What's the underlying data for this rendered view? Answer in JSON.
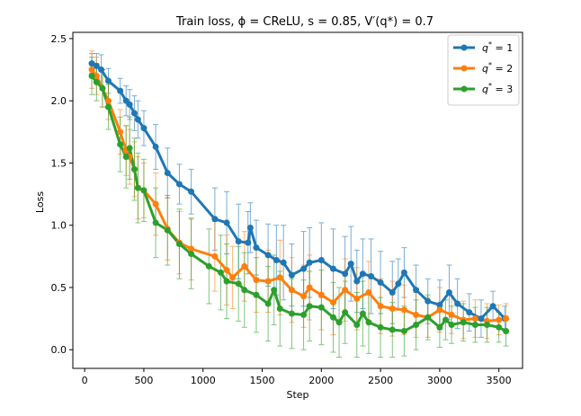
{
  "chart_data": {
    "type": "line",
    "title": "Train loss, ϕ = CReLU, s = 0.85, V′(q*) = 0.7",
    "xlabel": "Step",
    "ylabel": "Loss",
    "xlim": [
      -100,
      3700
    ],
    "ylim": [
      -0.15,
      2.55
    ],
    "xticks": [
      0,
      500,
      1000,
      1500,
      2000,
      2500,
      3000,
      3500
    ],
    "yticks": [
      0.0,
      0.5,
      1.0,
      1.5,
      2.0,
      2.5
    ],
    "xtick_labels": [
      "0",
      "500",
      "1000",
      "1500",
      "2000",
      "2500",
      "3000",
      "3500"
    ],
    "ytick_labels": [
      "0.0",
      "0.5",
      "1.0",
      "1.5",
      "2.0",
      "2.5"
    ],
    "grid": false,
    "legend_position": "top-right",
    "series": [
      {
        "name": "q* = 1",
        "label_main": "q",
        "label_sup": "*",
        "label_rest": " = 1",
        "color": "#1f77b4",
        "points": [
          [
            60,
            2.3,
            0.08
          ],
          [
            100,
            2.28,
            0.1
          ],
          [
            140,
            2.25,
            0.12
          ],
          [
            200,
            2.16,
            0.1
          ],
          [
            300,
            2.08,
            0.1
          ],
          [
            350,
            2.0,
            0.12
          ],
          [
            380,
            1.97,
            0.12
          ],
          [
            420,
            1.9,
            0.14
          ],
          [
            450,
            1.85,
            0.15
          ],
          [
            500,
            1.78,
            0.14
          ],
          [
            600,
            1.63,
            0.18
          ],
          [
            700,
            1.42,
            0.2
          ],
          [
            800,
            1.33,
            0.16
          ],
          [
            900,
            1.27,
            0.18
          ],
          [
            1100,
            1.05,
            0.25
          ],
          [
            1200,
            1.02,
            0.25
          ],
          [
            1300,
            0.87,
            0.3
          ],
          [
            1380,
            0.86,
            0.25
          ],
          [
            1400,
            0.98,
            0.2
          ],
          [
            1450,
            0.82,
            0.22
          ],
          [
            1550,
            0.76,
            0.25
          ],
          [
            1620,
            0.72,
            0.28
          ],
          [
            1680,
            0.7,
            0.3
          ],
          [
            1750,
            0.6,
            0.25
          ],
          [
            1850,
            0.65,
            0.3
          ],
          [
            1900,
            0.7,
            0.28
          ],
          [
            2000,
            0.72,
            0.3
          ],
          [
            2100,
            0.65,
            0.32
          ],
          [
            2200,
            0.61,
            0.3
          ],
          [
            2250,
            0.69,
            0.3
          ],
          [
            2300,
            0.55,
            0.25
          ],
          [
            2350,
            0.61,
            0.28
          ],
          [
            2420,
            0.59,
            0.3
          ],
          [
            2500,
            0.54,
            0.25
          ],
          [
            2600,
            0.46,
            0.25
          ],
          [
            2650,
            0.53,
            0.2
          ],
          [
            2700,
            0.62,
            0.2
          ],
          [
            2800,
            0.48,
            0.2
          ],
          [
            2900,
            0.39,
            0.18
          ],
          [
            3000,
            0.36,
            0.2
          ],
          [
            3080,
            0.46,
            0.22
          ],
          [
            3150,
            0.37,
            0.2
          ],
          [
            3250,
            0.3,
            0.15
          ],
          [
            3350,
            0.25,
            0.15
          ],
          [
            3450,
            0.35,
            0.12
          ],
          [
            3550,
            0.25,
            0.1
          ]
        ]
      },
      {
        "name": "q* = 2",
        "label_main": "q",
        "label_sup": "*",
        "label_rest": " = 2",
        "color": "#ff7f0e",
        "points": [
          [
            60,
            2.25,
            0.15
          ],
          [
            100,
            2.2,
            0.15
          ],
          [
            150,
            2.1,
            0.15
          ],
          [
            200,
            2.0,
            0.15
          ],
          [
            300,
            1.75,
            0.18
          ],
          [
            350,
            1.6,
            0.2
          ],
          [
            380,
            1.55,
            0.22
          ],
          [
            420,
            1.45,
            0.22
          ],
          [
            450,
            1.3,
            0.25
          ],
          [
            500,
            1.28,
            0.22
          ],
          [
            600,
            1.17,
            0.25
          ],
          [
            700,
            0.97,
            0.25
          ],
          [
            800,
            0.86,
            0.25
          ],
          [
            900,
            0.81,
            0.25
          ],
          [
            1100,
            0.75,
            0.28
          ],
          [
            1200,
            0.64,
            0.28
          ],
          [
            1250,
            0.58,
            0.25
          ],
          [
            1350,
            0.67,
            0.28
          ],
          [
            1450,
            0.56,
            0.26
          ],
          [
            1550,
            0.55,
            0.25
          ],
          [
            1650,
            0.58,
            0.3
          ],
          [
            1750,
            0.48,
            0.26
          ],
          [
            1850,
            0.43,
            0.25
          ],
          [
            1900,
            0.5,
            0.26
          ],
          [
            2000,
            0.44,
            0.28
          ],
          [
            2100,
            0.38,
            0.26
          ],
          [
            2200,
            0.48,
            0.25
          ],
          [
            2300,
            0.41,
            0.25
          ],
          [
            2400,
            0.46,
            0.25
          ],
          [
            2500,
            0.35,
            0.22
          ],
          [
            2600,
            0.33,
            0.22
          ],
          [
            2700,
            0.32,
            0.2
          ],
          [
            2800,
            0.28,
            0.18
          ],
          [
            2900,
            0.26,
            0.16
          ],
          [
            3000,
            0.32,
            0.18
          ],
          [
            3100,
            0.28,
            0.15
          ],
          [
            3200,
            0.24,
            0.15
          ],
          [
            3300,
            0.25,
            0.15
          ],
          [
            3400,
            0.23,
            0.14
          ],
          [
            3500,
            0.24,
            0.12
          ],
          [
            3560,
            0.25,
            0.12
          ]
        ]
      },
      {
        "name": "q* = 3",
        "label_main": "q",
        "label_sup": "*",
        "label_rest": " = 3",
        "color": "#2ca02c",
        "points": [
          [
            60,
            2.2,
            0.15
          ],
          [
            100,
            2.15,
            0.15
          ],
          [
            150,
            2.1,
            0.15
          ],
          [
            200,
            1.95,
            0.18
          ],
          [
            300,
            1.65,
            0.22
          ],
          [
            350,
            1.55,
            0.25
          ],
          [
            380,
            1.62,
            0.25
          ],
          [
            420,
            1.45,
            0.25
          ],
          [
            450,
            1.3,
            0.28
          ],
          [
            500,
            1.28,
            0.25
          ],
          [
            600,
            1.02,
            0.28
          ],
          [
            700,
            0.96,
            0.28
          ],
          [
            800,
            0.85,
            0.28
          ],
          [
            900,
            0.77,
            0.28
          ],
          [
            1050,
            0.67,
            0.3
          ],
          [
            1150,
            0.62,
            0.3
          ],
          [
            1200,
            0.55,
            0.3
          ],
          [
            1300,
            0.53,
            0.3
          ],
          [
            1350,
            0.48,
            0.3
          ],
          [
            1450,
            0.44,
            0.3
          ],
          [
            1550,
            0.37,
            0.3
          ],
          [
            1600,
            0.48,
            0.28
          ],
          [
            1650,
            0.33,
            0.3
          ],
          [
            1750,
            0.29,
            0.28
          ],
          [
            1850,
            0.28,
            0.28
          ],
          [
            1900,
            0.35,
            0.28
          ],
          [
            2000,
            0.34,
            0.3
          ],
          [
            2100,
            0.26,
            0.28
          ],
          [
            2150,
            0.22,
            0.28
          ],
          [
            2200,
            0.3,
            0.25
          ],
          [
            2300,
            0.2,
            0.26
          ],
          [
            2350,
            0.29,
            0.26
          ],
          [
            2400,
            0.22,
            0.25
          ],
          [
            2500,
            0.18,
            0.24
          ],
          [
            2600,
            0.16,
            0.22
          ],
          [
            2700,
            0.15,
            0.2
          ],
          [
            2800,
            0.2,
            0.2
          ],
          [
            2900,
            0.26,
            0.18
          ],
          [
            3000,
            0.18,
            0.16
          ],
          [
            3050,
            0.24,
            0.16
          ],
          [
            3100,
            0.2,
            0.15
          ],
          [
            3200,
            0.22,
            0.15
          ],
          [
            3300,
            0.2,
            0.14
          ],
          [
            3400,
            0.2,
            0.14
          ],
          [
            3500,
            0.18,
            0.12
          ],
          [
            3560,
            0.15,
            0.12
          ]
        ]
      }
    ]
  }
}
